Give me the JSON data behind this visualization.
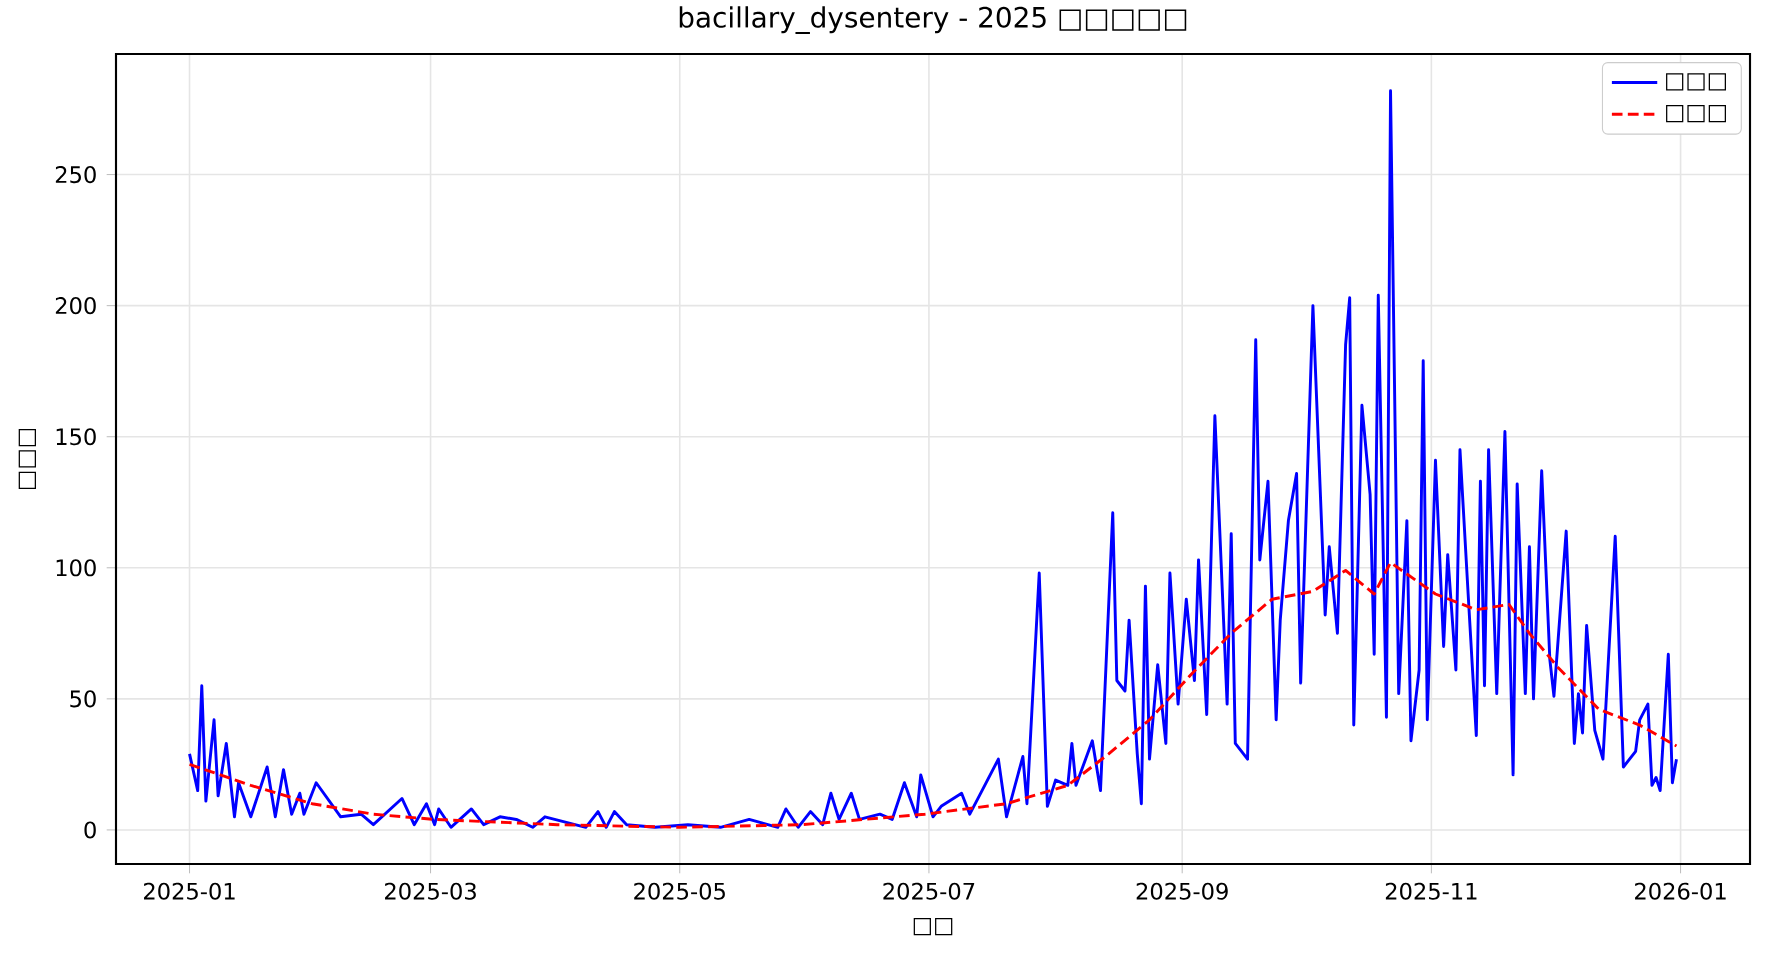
{
  "chart_data": {
    "type": "line",
    "title": "bacillary_dysentery - 2025 □□□□□",
    "xlabel": "□□",
    "ylabel": "□□□",
    "xlim": [
      "2024-12-14",
      "2026-01-18"
    ],
    "xticks": [
      "2025-01",
      "2025-03",
      "2025-05",
      "2025-07",
      "2025-09",
      "2025-11",
      "2026-01"
    ],
    "ylim": [
      -13,
      296
    ],
    "yticks": [
      0,
      50,
      100,
      150,
      200,
      250
    ],
    "grid": true,
    "legend": "top right",
    "marker": "none",
    "series": [
      {
        "name": "□□□",
        "color": "#0000ff",
        "line_style": "solid",
        "x": [
          "2025-01-01",
          "2025-01-03",
          "2025-01-04",
          "2025-01-05",
          "2025-01-07",
          "2025-01-08",
          "2025-01-10",
          "2025-01-12",
          "2025-01-13",
          "2025-01-16",
          "2025-01-20",
          "2025-01-22",
          "2025-01-24",
          "2025-01-26",
          "2025-01-28",
          "2025-01-29",
          "2025-02-01",
          "2025-02-07",
          "2025-02-12",
          "2025-02-15",
          "2025-02-22",
          "2025-02-25",
          "2025-02-28",
          "2025-03-02",
          "2025-03-03",
          "2025-03-06",
          "2025-03-11",
          "2025-03-14",
          "2025-03-18",
          "2025-03-22",
          "2025-03-26",
          "2025-03-29",
          "2025-04-08",
          "2025-04-11",
          "2025-04-13",
          "2025-04-15",
          "2025-04-18",
          "2025-04-25",
          "2025-05-03",
          "2025-05-11",
          "2025-05-18",
          "2025-05-25",
          "2025-05-27",
          "2025-05-30",
          "2025-06-02",
          "2025-06-05",
          "2025-06-07",
          "2025-06-09",
          "2025-06-12",
          "2025-06-14",
          "2025-06-19",
          "2025-06-22",
          "2025-06-25",
          "2025-06-28",
          "2025-06-29",
          "2025-07-02",
          "2025-07-04",
          "2025-07-09",
          "2025-07-11",
          "2025-07-14",
          "2025-07-18",
          "2025-07-20",
          "2025-07-24",
          "2025-07-25",
          "2025-07-28",
          "2025-07-30",
          "2025-08-01",
          "2025-08-04",
          "2025-08-05",
          "2025-08-06",
          "2025-08-10",
          "2025-08-12",
          "2025-08-15",
          "2025-08-16",
          "2025-08-18",
          "2025-08-19",
          "2025-08-21",
          "2025-08-22",
          "2025-08-23",
          "2025-08-24",
          "2025-08-26",
          "2025-08-28",
          "2025-08-29",
          "2025-08-31",
          "2025-09-02",
          "2025-09-04",
          "2025-09-05",
          "2025-09-07",
          "2025-09-09",
          "2025-09-12",
          "2025-09-13",
          "2025-09-14",
          "2025-09-17",
          "2025-09-19",
          "2025-09-20",
          "2025-09-22",
          "2025-09-24",
          "2025-09-25",
          "2025-09-27",
          "2025-09-29",
          "2025-09-30",
          "2025-10-03",
          "2025-10-06",
          "2025-10-07",
          "2025-10-09",
          "2025-10-11",
          "2025-10-12",
          "2025-10-13",
          "2025-10-15",
          "2025-10-17",
          "2025-10-18",
          "2025-10-19",
          "2025-10-21",
          "2025-10-22",
          "2025-10-24",
          "2025-10-26",
          "2025-10-27",
          "2025-10-29",
          "2025-10-30",
          "2025-10-31",
          "2025-11-02",
          "2025-11-04",
          "2025-11-05",
          "2025-11-07",
          "2025-11-08",
          "2025-11-10",
          "2025-11-12",
          "2025-11-13",
          "2025-11-14",
          "2025-11-15",
          "2025-11-17",
          "2025-11-19",
          "2025-11-21",
          "2025-11-22",
          "2025-11-24",
          "2025-11-25",
          "2025-11-26",
          "2025-11-28",
          "2025-11-30",
          "2025-12-01",
          "2025-12-04",
          "2025-12-06",
          "2025-12-07",
          "2025-12-08",
          "2025-12-09",
          "2025-12-11",
          "2025-12-13",
          "2025-12-16",
          "2025-12-18",
          "2025-12-21",
          "2025-12-22",
          "2025-12-24",
          "2025-12-25",
          "2025-12-26",
          "2025-12-27",
          "2025-12-29",
          "2025-12-30",
          "2025-12-31"
        ],
        "values": [
          29,
          15,
          55,
          11,
          42,
          13,
          33,
          5,
          18,
          5,
          24,
          5,
          23,
          6,
          14,
          6,
          18,
          5,
          6,
          2,
          12,
          2,
          10,
          2,
          8,
          1,
          8,
          2,
          5,
          4,
          1,
          5,
          1,
          7,
          1,
          7,
          2,
          1,
          2,
          1,
          4,
          1,
          8,
          1,
          7,
          2,
          14,
          4,
          14,
          4,
          6,
          4,
          18,
          5,
          21,
          5,
          9,
          14,
          6,
          15,
          27,
          5,
          28,
          10,
          98,
          9,
          19,
          17,
          33,
          17,
          34,
          15,
          121,
          57,
          53,
          80,
          29,
          10,
          93,
          27,
          63,
          33,
          98,
          48,
          88,
          57,
          103,
          44,
          158,
          48,
          113,
          33,
          27,
          187,
          103,
          133,
          42,
          80,
          118,
          136,
          56,
          200,
          82,
          108,
          75,
          185,
          203,
          40,
          162,
          128,
          67,
          204,
          43,
          282,
          52,
          118,
          34,
          61,
          179,
          42,
          141,
          70,
          105,
          61,
          145,
          90,
          36,
          133,
          55,
          145,
          52,
          152,
          21,
          132,
          52,
          108,
          50,
          137,
          65,
          51,
          114,
          33,
          52,
          37,
          78,
          38,
          27,
          112,
          24,
          30,
          42,
          48,
          17,
          20,
          15,
          67,
          18,
          27
        ]
      },
      {
        "name": "□□□",
        "color": "#ff0000",
        "line_style": "dashed",
        "x": [
          "2025-01-01",
          "2025-01-16",
          "2025-01-31",
          "2025-02-15",
          "2025-03-02",
          "2025-04-01",
          "2025-05-01",
          "2025-05-31",
          "2025-06-30",
          "2025-07-20",
          "2025-08-04",
          "2025-08-14",
          "2025-08-24",
          "2025-09-03",
          "2025-09-13",
          "2025-09-23",
          "2025-10-03",
          "2025-10-11",
          "2025-10-18",
          "2025-10-22",
          "2025-11-02",
          "2025-11-12",
          "2025-11-20",
          "2025-11-25",
          "2025-12-02",
          "2025-12-12",
          "2025-12-22",
          "2025-12-31"
        ],
        "values": [
          25,
          17,
          10,
          6,
          4,
          2,
          1,
          2,
          6,
          10,
          17,
          29,
          42,
          59,
          75,
          88,
          91,
          99,
          90,
          102,
          90,
          84,
          86,
          75,
          62,
          46,
          40,
          32
        ]
      }
    ]
  }
}
